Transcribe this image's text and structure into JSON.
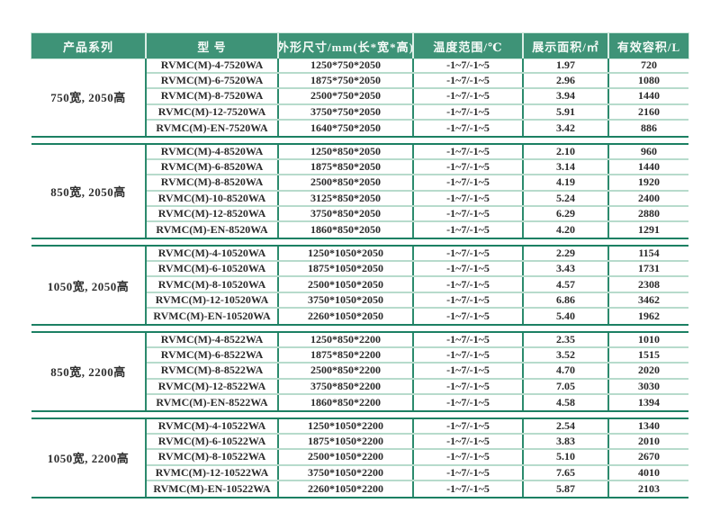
{
  "table": {
    "columns": [
      {
        "key": "series",
        "label": "产品系列"
      },
      {
        "key": "model",
        "label": "型 号"
      },
      {
        "key": "size",
        "label": "外形尺寸/mm(长*宽*高)"
      },
      {
        "key": "temp",
        "label": "温度范围/℃"
      },
      {
        "key": "area",
        "label": "展示面积/㎡"
      },
      {
        "key": "volume",
        "label": "有效容积/L"
      }
    ],
    "sections": [
      {
        "series": "750宽, 2050高",
        "rows": [
          [
            "RVMC(M)-4-7520WA",
            "1250*750*2050",
            "-1~7/-1~5",
            "1.97",
            "720"
          ],
          [
            "RVMC(M)-6-7520WA",
            "1875*750*2050",
            "-1~7/-1~5",
            "2.96",
            "1080"
          ],
          [
            "RVMC(M)-8-7520WA",
            "2500*750*2050",
            "-1~7/-1~5",
            "3.94",
            "1440"
          ],
          [
            "RVMC(M)-12-7520WA",
            "3750*750*2050",
            "-1~7/-1~5",
            "5.91",
            "2160"
          ],
          [
            "RVMC(M)-EN-7520WA",
            "1640*750*2050",
            "-1~7/-1~5",
            "3.42",
            "886"
          ]
        ]
      },
      {
        "series": "850宽, 2050高",
        "rows": [
          [
            "RVMC(M)-4-8520WA",
            "1250*850*2050",
            "-1~7/-1~5",
            "2.10",
            "960"
          ],
          [
            "RVMC(M)-6-8520WA",
            "1875*850*2050",
            "-1~7/-1~5",
            "3.14",
            "1440"
          ],
          [
            "RVMC(M)-8-8520WA",
            "2500*850*2050",
            "-1~7/-1~5",
            "4.19",
            "1920"
          ],
          [
            "RVMC(M)-10-8520WA",
            "3125*850*2050",
            "-1~7/-1~5",
            "5.24",
            "2400"
          ],
          [
            "RVMC(M)-12-8520WA",
            "3750*850*2050",
            "-1~7/-1~5",
            "6.29",
            "2880"
          ],
          [
            "RVMC(M)-EN-8520WA",
            "1860*850*2050",
            "-1~7/-1~5",
            "4.20",
            "1291"
          ]
        ]
      },
      {
        "series": "1050宽, 2050高",
        "rows": [
          [
            "RVMC(M)-4-10520WA",
            "1250*1050*2050",
            "-1~7/-1~5",
            "2.29",
            "1154"
          ],
          [
            "RVMC(M)-6-10520WA",
            "1875*1050*2050",
            "-1~7/-1~5",
            "3.43",
            "1731"
          ],
          [
            "RVMC(M)-8-10520WA",
            "2500*1050*2050",
            "-1~7/-1~5",
            "4.57",
            "2308"
          ],
          [
            "RVMC(M)-12-10520WA",
            "3750*1050*2050",
            "-1~7/-1~5",
            "6.86",
            "3462"
          ],
          [
            "RVMC(M)-EN-10520WA",
            "2260*1050*2050",
            "-1~7/-1~5",
            "5.40",
            "1962"
          ]
        ]
      },
      {
        "series": "850宽, 2200高",
        "rows": [
          [
            "RVMC(M)-4-8522WA",
            "1250*850*2200",
            "-1~7/-1~5",
            "2.35",
            "1010"
          ],
          [
            "RVMC(M)-6-8522WA",
            "1875*850*2200",
            "-1~7/-1~5",
            "3.52",
            "1515"
          ],
          [
            "RVMC(M)-8-8522WA",
            "2500*850*2200",
            "-1~7/-1~5",
            "4.70",
            "2020"
          ],
          [
            "RVMC(M)-12-8522WA",
            "3750*850*2200",
            "-1~7/-1~5",
            "7.05",
            "3030"
          ],
          [
            "RVMC(M)-EN-8522WA",
            "1860*850*2200",
            "-1~7/-1~5",
            "4.58",
            "1394"
          ]
        ]
      },
      {
        "series": "1050宽, 2200高",
        "rows": [
          [
            "RVMC(M)-4-10522WA",
            "1250*1050*2200",
            "-1~7/-1~5",
            "2.54",
            "1340"
          ],
          [
            "RVMC(M)-6-10522WA",
            "1875*1050*2200",
            "-1~7/-1~5",
            "3.83",
            "2010"
          ],
          [
            "RVMC(M)-8-10522WA",
            "2500*1050*2200",
            "-1~7/-1~5",
            "5.10",
            "2670"
          ],
          [
            "RVMC(M)-12-10522WA",
            "3750*1050*2200",
            "-1~7/-1~5",
            "7.65",
            "4010"
          ],
          [
            "RVMC(M)-EN-10522WA",
            "2260*1050*2200",
            "-1~7/-1~5",
            "5.87",
            "2103"
          ]
        ]
      }
    ]
  },
  "colors": {
    "header_bg": "#3e9377",
    "header_text": "#f6fbf8",
    "section_border": "#1c8063",
    "column_border": "#2c8a6d",
    "row_separator": "#b7dbcc",
    "data_text": "#2a2a2a",
    "page_bg": "#ffffff"
  }
}
